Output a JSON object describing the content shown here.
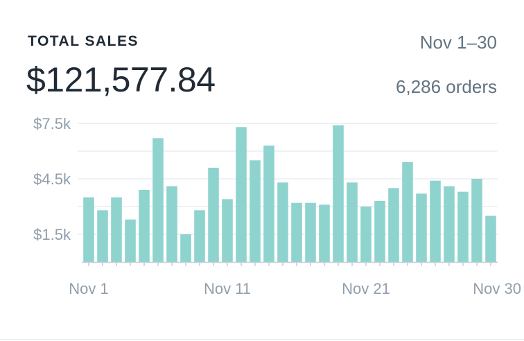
{
  "header": {
    "title": "TOTAL SALES",
    "total": "$121,577.84",
    "date_range": "Nov 1–30",
    "orders": "6,286 orders"
  },
  "colors": {
    "bar": "#8fd3cf",
    "grid": "#dfe3e8",
    "axis": "#c4cdd5",
    "text": "#212b36",
    "muted": "#637381"
  },
  "chart_data": {
    "type": "bar",
    "title": "TOTAL SALES",
    "categories": [
      "Nov 1",
      "Nov 2",
      "Nov 3",
      "Nov 4",
      "Nov 5",
      "Nov 6",
      "Nov 7",
      "Nov 8",
      "Nov 9",
      "Nov 10",
      "Nov 11",
      "Nov 12",
      "Nov 13",
      "Nov 14",
      "Nov 15",
      "Nov 16",
      "Nov 17",
      "Nov 18",
      "Nov 19",
      "Nov 20",
      "Nov 21",
      "Nov 22",
      "Nov 23",
      "Nov 24",
      "Nov 25",
      "Nov 26",
      "Nov 27",
      "Nov 28",
      "Nov 29",
      "Nov 30"
    ],
    "values": [
      3500,
      2800,
      3500,
      2300,
      3900,
      6700,
      4100,
      1500,
      2800,
      5100,
      3400,
      7300,
      5500,
      6300,
      4300,
      3200,
      3200,
      3100,
      7400,
      4300,
      3000,
      3300,
      4000,
      5400,
      3700,
      4400,
      4100,
      3800,
      4500,
      2500
    ],
    "ylim": [
      0,
      7500
    ],
    "yticks": [
      "$7.5k",
      "$4.5k",
      "$1.5k"
    ],
    "ytick_values": [
      7500,
      4500,
      1500
    ],
    "xtick_labels": [
      "Nov 1",
      "Nov 11",
      "Nov 21",
      "Nov 30"
    ],
    "xtick_indices": [
      0,
      10,
      20,
      29
    ],
    "xlabel": "",
    "ylabel": "",
    "grid": true
  }
}
